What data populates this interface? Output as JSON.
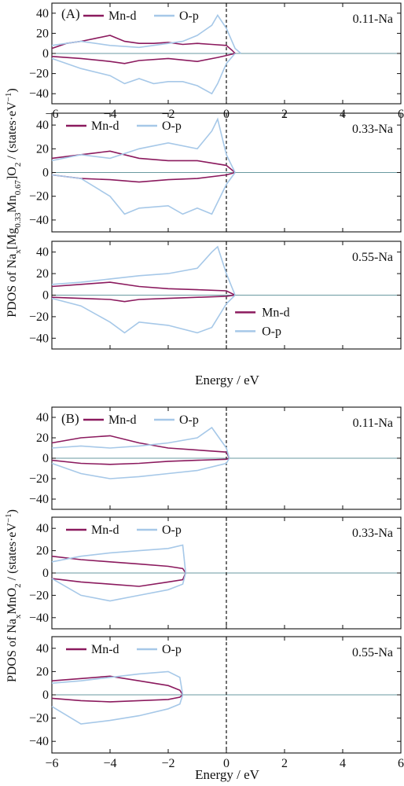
{
  "colors": {
    "mn_d": "#8b1a5e",
    "o_p": "#a6c8e8",
    "axis": "#111111",
    "zero_line": "#6a9aa0"
  },
  "figure_a": {
    "label": "(A)",
    "ylabel_pre": "PDOS of Na",
    "ylabel_sub1": "x",
    "ylabel_mid1": "[Mg",
    "ylabel_sub2": "0.33",
    "ylabel_mid2": "Mn",
    "ylabel_sub3": "0.67",
    "ylabel_mid3": "]O",
    "ylabel_sub4": "2",
    "ylabel_mid4": " / (states·eV",
    "ylabel_sup": "−1",
    "ylabel_post": ")",
    "xlabel": "Energy / eV"
  },
  "figure_b": {
    "label": "(B)",
    "ylabel_pre": "PDOS of Na",
    "ylabel_sub1": "x",
    "ylabel_mid1": "MnO",
    "ylabel_sub2": "2",
    "ylabel_mid2": " / (states·eV",
    "ylabel_sup": "−1",
    "ylabel_post": ")",
    "xlabel": "Energy / eV"
  },
  "chart_data": [
    {
      "type": "line",
      "panel": "A1",
      "annotation": "0.11-Na",
      "legend": [
        "Mn-d",
        "O-p"
      ],
      "legend_position": "top-left",
      "xlim": [
        -6,
        6
      ],
      "ylim": [
        -50,
        50
      ],
      "fermi_level": 0,
      "yticks": [
        -40,
        -20,
        0,
        20,
        40
      ],
      "xticks": [
        -6,
        -4,
        -2,
        0,
        2,
        4,
        6
      ],
      "series": [
        {
          "name": "Mn-d",
          "up": [
            [
              -6,
              5
            ],
            [
              -5.5,
              10
            ],
            [
              -5,
              12
            ],
            [
              -4.5,
              15
            ],
            [
              -4,
              18
            ],
            [
              -3.5,
              12
            ],
            [
              -3,
              10
            ],
            [
              -2.5,
              10
            ],
            [
              -2,
              11
            ],
            [
              -1.5,
              9
            ],
            [
              -1,
              10
            ],
            [
              -0.5,
              9
            ],
            [
              0,
              8
            ],
            [
              0.2,
              3
            ],
            [
              0.3,
              0
            ]
          ],
          "down": [
            [
              -6,
              -3
            ],
            [
              -5,
              -5
            ],
            [
              -4,
              -8
            ],
            [
              -3.5,
              -10
            ],
            [
              -3,
              -7
            ],
            [
              -2,
              -5
            ],
            [
              -1,
              -8
            ],
            [
              -0.3,
              -4
            ],
            [
              0,
              -2
            ],
            [
              0.3,
              0
            ]
          ]
        },
        {
          "name": "O-p",
          "up": [
            [
              -6,
              8
            ],
            [
              -5,
              12
            ],
            [
              -4,
              8
            ],
            [
              -3,
              6
            ],
            [
              -2,
              10
            ],
            [
              -1.5,
              12
            ],
            [
              -1,
              18
            ],
            [
              -0.5,
              28
            ],
            [
              -0.3,
              38
            ],
            [
              0,
              25
            ],
            [
              0.3,
              5
            ],
            [
              0.5,
              0
            ]
          ],
          "down": [
            [
              -6,
              -5
            ],
            [
              -5,
              -15
            ],
            [
              -4,
              -22
            ],
            [
              -3.5,
              -30
            ],
            [
              -3,
              -25
            ],
            [
              -2.5,
              -30
            ],
            [
              -2,
              -28
            ],
            [
              -1.5,
              -28
            ],
            [
              -1,
              -32
            ],
            [
              -0.5,
              -40
            ],
            [
              -0.3,
              -30
            ],
            [
              0,
              -10
            ],
            [
              0.3,
              0
            ]
          ]
        }
      ]
    },
    {
      "type": "line",
      "panel": "A2",
      "annotation": "0.33-Na",
      "legend": [
        "Mn-d",
        "O-p"
      ],
      "legend_position": "top-left",
      "xlim": [
        -6,
        6
      ],
      "ylim": [
        -50,
        50
      ],
      "fermi_level": 0,
      "yticks": [
        -40,
        -20,
        0,
        20,
        40
      ],
      "series": [
        {
          "name": "Mn-d",
          "up": [
            [
              -6,
              12
            ],
            [
              -5,
              15
            ],
            [
              -4,
              18
            ],
            [
              -3,
              12
            ],
            [
              -2,
              10
            ],
            [
              -1,
              10
            ],
            [
              -0.5,
              8
            ],
            [
              0,
              6
            ],
            [
              0.3,
              0
            ]
          ],
          "down": [
            [
              -6,
              -2
            ],
            [
              -5,
              -5
            ],
            [
              -4,
              -6
            ],
            [
              -3,
              -8
            ],
            [
              -2,
              -6
            ],
            [
              -1,
              -5
            ],
            [
              0,
              -2
            ],
            [
              0.3,
              0
            ]
          ]
        },
        {
          "name": "O-p",
          "up": [
            [
              -6,
              10
            ],
            [
              -5,
              15
            ],
            [
              -4,
              12
            ],
            [
              -3,
              20
            ],
            [
              -2,
              25
            ],
            [
              -1,
              20
            ],
            [
              -0.5,
              35
            ],
            [
              -0.3,
              45
            ],
            [
              0,
              15
            ],
            [
              0.3,
              0
            ]
          ],
          "down": [
            [
              -6,
              -2
            ],
            [
              -5,
              -5
            ],
            [
              -4,
              -20
            ],
            [
              -3.5,
              -35
            ],
            [
              -3,
              -30
            ],
            [
              -2,
              -28
            ],
            [
              -1.5,
              -35
            ],
            [
              -1,
              -30
            ],
            [
              -0.5,
              -35
            ],
            [
              0,
              -10
            ],
            [
              0.3,
              0
            ]
          ]
        }
      ]
    },
    {
      "type": "line",
      "panel": "A3",
      "annotation": "0.55-Na",
      "legend": [
        "Mn-d",
        "O-p"
      ],
      "legend_position": "right",
      "xlim": [
        -6,
        6
      ],
      "ylim": [
        -50,
        50
      ],
      "fermi_level": 0,
      "yticks": [
        -40,
        -20,
        0,
        20,
        40
      ],
      "series": [
        {
          "name": "Mn-d",
          "up": [
            [
              -6,
              8
            ],
            [
              -5,
              10
            ],
            [
              -4,
              12
            ],
            [
              -3,
              8
            ],
            [
              -2,
              6
            ],
            [
              -1,
              5
            ],
            [
              0,
              4
            ],
            [
              0.3,
              0
            ]
          ],
          "down": [
            [
              -6,
              -2
            ],
            [
              -4,
              -4
            ],
            [
              -3.5,
              -6
            ],
            [
              -3,
              -4
            ],
            [
              -2,
              -3
            ],
            [
              0,
              -1
            ],
            [
              0.3,
              0
            ]
          ]
        },
        {
          "name": "O-p",
          "up": [
            [
              -6,
              10
            ],
            [
              -5,
              12
            ],
            [
              -4,
              15
            ],
            [
              -3,
              18
            ],
            [
              -2,
              20
            ],
            [
              -1,
              25
            ],
            [
              -0.5,
              40
            ],
            [
              -0.3,
              45
            ],
            [
              0,
              20
            ],
            [
              0.3,
              0
            ]
          ],
          "down": [
            [
              -6,
              -3
            ],
            [
              -5,
              -10
            ],
            [
              -4,
              -25
            ],
            [
              -3.5,
              -35
            ],
            [
              -3,
              -25
            ],
            [
              -2,
              -28
            ],
            [
              -1,
              -35
            ],
            [
              -0.5,
              -30
            ],
            [
              0,
              -8
            ],
            [
              0.3,
              0
            ]
          ]
        }
      ]
    },
    {
      "type": "line",
      "panel": "B1",
      "annotation": "0.11-Na",
      "legend": [
        "Mn-d",
        "O-p"
      ],
      "legend_position": "top-left",
      "xlim": [
        -6,
        6
      ],
      "ylim": [
        -50,
        50
      ],
      "fermi_level": 0,
      "yticks": [
        -40,
        -20,
        0,
        20,
        40
      ],
      "series": [
        {
          "name": "Mn-d",
          "up": [
            [
              -6,
              15
            ],
            [
              -5,
              20
            ],
            [
              -4,
              22
            ],
            [
              -3,
              15
            ],
            [
              -2,
              10
            ],
            [
              -1,
              8
            ],
            [
              0,
              6
            ],
            [
              0.1,
              0
            ]
          ],
          "down": [
            [
              -6,
              -2
            ],
            [
              -5,
              -5
            ],
            [
              -4,
              -6
            ],
            [
              -3,
              -5
            ],
            [
              -2,
              -3
            ],
            [
              -1,
              -2
            ],
            [
              0,
              -1
            ],
            [
              0.1,
              0
            ]
          ]
        },
        {
          "name": "O-p",
          "up": [
            [
              -6,
              10
            ],
            [
              -5,
              12
            ],
            [
              -4,
              10
            ],
            [
              -3,
              12
            ],
            [
              -2,
              15
            ],
            [
              -1,
              20
            ],
            [
              -0.5,
              30
            ],
            [
              0,
              10
            ],
            [
              0.1,
              0
            ]
          ],
          "down": [
            [
              -6,
              -5
            ],
            [
              -5,
              -15
            ],
            [
              -4,
              -20
            ],
            [
              -3,
              -18
            ],
            [
              -2,
              -15
            ],
            [
              -1,
              -12
            ],
            [
              0,
              -5
            ],
            [
              0.1,
              0
            ]
          ]
        }
      ]
    },
    {
      "type": "line",
      "panel": "B2",
      "annotation": "0.33-Na",
      "legend": [
        "Mn-d",
        "O-p"
      ],
      "legend_position": "top-left",
      "xlim": [
        -6,
        6
      ],
      "ylim": [
        -50,
        50
      ],
      "fermi_level": 0,
      "yticks": [
        -40,
        -20,
        0,
        20,
        40
      ],
      "series": [
        {
          "name": "Mn-d",
          "up": [
            [
              -6,
              15
            ],
            [
              -5,
              12
            ],
            [
              -4,
              10
            ],
            [
              -3,
              8
            ],
            [
              -2,
              6
            ],
            [
              -1.5,
              4
            ],
            [
              -1.4,
              0
            ]
          ],
          "down": [
            [
              -6,
              -5
            ],
            [
              -5,
              -8
            ],
            [
              -4,
              -10
            ],
            [
              -3,
              -12
            ],
            [
              -2,
              -8
            ],
            [
              -1.5,
              -6
            ],
            [
              -1.4,
              0
            ]
          ]
        },
        {
          "name": "O-p",
          "up": [
            [
              -6,
              10
            ],
            [
              -5,
              15
            ],
            [
              -4,
              18
            ],
            [
              -3,
              20
            ],
            [
              -2,
              22
            ],
            [
              -1.5,
              25
            ],
            [
              -1.4,
              0
            ]
          ],
          "down": [
            [
              -6,
              -5
            ],
            [
              -5,
              -20
            ],
            [
              -4,
              -25
            ],
            [
              -3,
              -20
            ],
            [
              -2,
              -15
            ],
            [
              -1.5,
              -10
            ],
            [
              -1.4,
              0
            ]
          ]
        }
      ]
    },
    {
      "type": "line",
      "panel": "B3",
      "annotation": "0.55-Na",
      "legend": [
        "Mn-d",
        "O-p"
      ],
      "legend_position": "top-left",
      "xlim": [
        -6,
        6
      ],
      "ylim": [
        -50,
        50
      ],
      "fermi_level": 0,
      "yticks": [
        -40,
        -20,
        0,
        20,
        40
      ],
      "xticks": [
        -6,
        -4,
        -2,
        0,
        2,
        4,
        6
      ],
      "series": [
        {
          "name": "Mn-d",
          "up": [
            [
              -6,
              12
            ],
            [
              -5,
              14
            ],
            [
              -4,
              16
            ],
            [
              -3,
              12
            ],
            [
              -2,
              8
            ],
            [
              -1.6,
              4
            ],
            [
              -1.5,
              0
            ]
          ],
          "down": [
            [
              -6,
              -3
            ],
            [
              -5,
              -5
            ],
            [
              -4,
              -6
            ],
            [
              -3,
              -5
            ],
            [
              -2,
              -4
            ],
            [
              -1.6,
              -2
            ],
            [
              -1.5,
              0
            ]
          ]
        },
        {
          "name": "O-p",
          "up": [
            [
              -6,
              10
            ],
            [
              -5,
              12
            ],
            [
              -4,
              15
            ],
            [
              -3,
              18
            ],
            [
              -2,
              20
            ],
            [
              -1.6,
              15
            ],
            [
              -1.5,
              0
            ]
          ],
          "down": [
            [
              -6,
              -10
            ],
            [
              -5,
              -25
            ],
            [
              -4,
              -22
            ],
            [
              -3,
              -18
            ],
            [
              -2,
              -12
            ],
            [
              -1.6,
              -8
            ],
            [
              -1.5,
              0
            ]
          ]
        }
      ]
    }
  ]
}
